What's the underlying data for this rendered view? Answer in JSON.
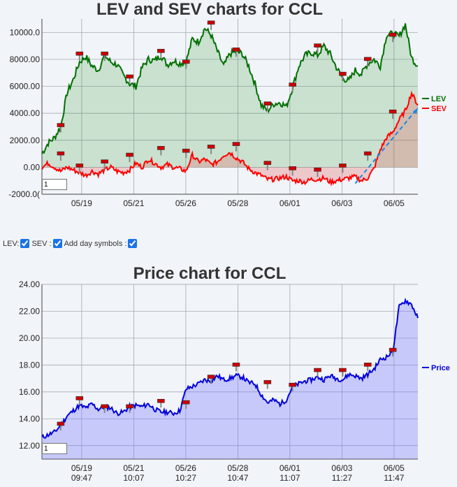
{
  "charts": {
    "lev_title": "LEV and SEV charts for CCL",
    "price_title": "Price chart for CCL"
  },
  "controls": {
    "lev_label": "LEV:",
    "sev_label": "SEV :",
    "day_label": "Add day symbols :",
    "lev_checked": true,
    "sev_checked": true,
    "day_checked": true
  },
  "range_inputs": {
    "lev": "1",
    "price": "1"
  },
  "x_ticks": [
    {
      "date": "05/19",
      "time": "09:47"
    },
    {
      "date": "05/21",
      "time": "10:07"
    },
    {
      "date": "05/26",
      "time": "10:27"
    },
    {
      "date": "05/28",
      "time": "10:47"
    },
    {
      "date": "06/01",
      "time": "11:07"
    },
    {
      "date": "06/03",
      "time": "11:27"
    },
    {
      "date": "06/05",
      "time": "11:47"
    }
  ],
  "colors": {
    "lev": "#007000",
    "sev": "#ff0000",
    "price": "#0000dd",
    "trend": "#1e88e5",
    "marker": "#cc0000"
  },
  "chart_data": [
    {
      "type": "line",
      "title": "LEV and SEV charts for CCL",
      "xlabel": "",
      "ylabel": "",
      "ylim": [
        -2000,
        11000
      ],
      "yticks": [
        -2000,
        0,
        2000,
        4000,
        6000,
        8000,
        10000
      ],
      "ytick_labels": [
        "-2000.0(",
        "0.00",
        "2000.00",
        "4000.00",
        "6000.00",
        "8000.00",
        "10000.0"
      ],
      "legend": "right",
      "grid": true,
      "x": [
        0,
        1,
        2,
        3,
        4,
        5,
        6,
        7,
        8,
        9,
        10,
        11,
        12,
        13,
        14,
        15,
        16,
        17,
        18,
        19,
        20,
        21,
        22,
        23,
        24,
        25,
        26,
        27,
        28,
        29,
        30,
        31,
        32,
        33,
        34,
        35,
        36,
        37,
        38,
        39,
        40,
        41,
        42,
        43,
        44,
        45,
        46,
        47,
        48,
        49,
        50,
        51,
        52,
        53,
        54,
        55,
        56,
        57,
        58,
        59,
        60
      ],
      "series": [
        {
          "name": "LEV",
          "values": [
            1000,
            1800,
            2200,
            3000,
            5500,
            6500,
            7800,
            8200,
            7500,
            7200,
            8300,
            7800,
            7600,
            6800,
            6200,
            6000,
            7400,
            8000,
            7900,
            8300,
            7600,
            7900,
            7700,
            7800,
            9500,
            9300,
            10300,
            9800,
            8600,
            7500,
            8400,
            8600,
            8400,
            7500,
            6200,
            4600,
            4200,
            4700,
            4800,
            4500,
            5900,
            7500,
            8300,
            8500,
            8300,
            9000,
            8400,
            7400,
            6600,
            6400,
            7200,
            6900,
            7700,
            8000,
            7500,
            9800,
            9900,
            9700,
            10600,
            8100,
            7500
          ]
        },
        {
          "name": "SEV",
          "values": [
            0,
            300,
            0,
            -300,
            0,
            -200,
            -400,
            -600,
            -300,
            -500,
            -200,
            0,
            -300,
            -400,
            -200,
            300,
            0,
            600,
            300,
            0,
            200,
            0,
            -100,
            -300,
            900,
            400,
            600,
            200,
            400,
            900,
            1100,
            700,
            400,
            -100,
            -400,
            -600,
            -900,
            -900,
            -800,
            -700,
            -1000,
            -1000,
            -1100,
            -900,
            -900,
            -800,
            -1100,
            -1000,
            -900,
            -800,
            -700,
            -1000,
            -800,
            -100,
            1300,
            2200,
            2600,
            3500,
            4200,
            5500,
            4600
          ]
        }
      ],
      "trendline": {
        "x": [
          50,
          60
        ],
        "y": [
          -1200,
          4400
        ]
      },
      "lev_markers": [
        [
          3,
          3100
        ],
        [
          6,
          8400
        ],
        [
          10,
          8400
        ],
        [
          14,
          6700
        ],
        [
          19,
          8600
        ],
        [
          23,
          7800
        ],
        [
          27,
          10700
        ],
        [
          31,
          8700
        ],
        [
          36,
          4700
        ],
        [
          40,
          6100
        ],
        [
          44,
          9000
        ],
        [
          48,
          6900
        ],
        [
          52,
          8000
        ],
        [
          56,
          9800
        ]
      ],
      "sev_markers": [
        [
          3,
          1000
        ],
        [
          6,
          100
        ],
        [
          10,
          400
        ],
        [
          14,
          900
        ],
        [
          19,
          1400
        ],
        [
          23,
          1200
        ],
        [
          27,
          1500
        ],
        [
          31,
          1700
        ],
        [
          36,
          300
        ],
        [
          40,
          -100
        ],
        [
          44,
          -200
        ],
        [
          48,
          100
        ],
        [
          52,
          1000
        ],
        [
          56,
          4100
        ]
      ]
    },
    {
      "type": "area",
      "title": "Price chart for CCL",
      "xlabel": "",
      "ylabel": "",
      "ylim": [
        11.0,
        24.0
      ],
      "yticks": [
        12,
        14,
        16,
        18,
        20,
        22,
        24
      ],
      "ytick_labels": [
        "12.00",
        "14.00",
        "16.00",
        "18.00",
        "20.00",
        "22.00",
        "24.00"
      ],
      "legend": "right",
      "grid": true,
      "x": [
        0,
        1,
        2,
        3,
        4,
        5,
        6,
        7,
        8,
        9,
        10,
        11,
        12,
        13,
        14,
        15,
        16,
        17,
        18,
        19,
        20,
        21,
        22,
        23,
        24,
        25,
        26,
        27,
        28,
        29,
        30,
        31,
        32,
        33,
        34,
        35,
        36,
        37,
        38,
        39,
        40,
        41,
        42,
        43,
        44,
        45,
        46,
        47,
        48,
        49,
        50,
        51,
        52,
        53,
        54,
        55,
        56,
        57,
        58,
        59,
        60
      ],
      "series": [
        {
          "name": "Price",
          "values": [
            12.6,
            12.8,
            13.0,
            13.5,
            14.2,
            14.6,
            15.0,
            14.8,
            15.1,
            14.7,
            14.9,
            14.8,
            14.4,
            14.5,
            14.9,
            15.0,
            14.9,
            15.1,
            14.7,
            14.5,
            14.5,
            14.4,
            14.6,
            16.2,
            16.4,
            16.6,
            16.9,
            16.8,
            17.2,
            16.9,
            17.0,
            17.2,
            17.1,
            16.7,
            16.6,
            15.8,
            15.2,
            15.4,
            15.1,
            15.4,
            16.4,
            16.6,
            16.8,
            16.9,
            17.1,
            16.9,
            17.2,
            17.0,
            16.9,
            17.3,
            17.2,
            17.0,
            17.3,
            17.7,
            18.4,
            18.6,
            19.0,
            22.3,
            22.8,
            22.5,
            21.5
          ]
        }
      ],
      "markers": [
        [
          3,
          13.6
        ],
        [
          6,
          15.5
        ],
        [
          10,
          14.9
        ],
        [
          14,
          14.9
        ],
        [
          19,
          15.3
        ],
        [
          23,
          15.2
        ],
        [
          27,
          17.1
        ],
        [
          31,
          18.0
        ],
        [
          36,
          16.7
        ],
        [
          40,
          16.5
        ],
        [
          44,
          17.6
        ],
        [
          48,
          17.6
        ],
        [
          52,
          18.0
        ],
        [
          56,
          19.1
        ]
      ]
    }
  ]
}
